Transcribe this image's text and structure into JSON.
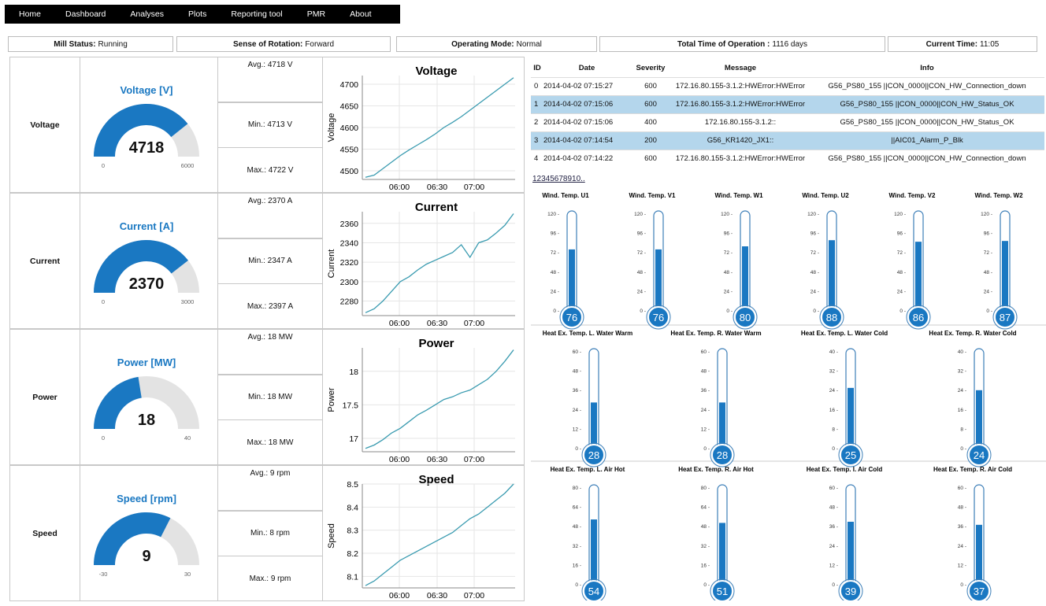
{
  "nav": [
    "Home",
    "Dashboard",
    "Analyses",
    "Plots",
    "Reporting tool",
    "PMR",
    "About"
  ],
  "status": [
    {
      "label": "Mill Status:",
      "value": "Running"
    },
    {
      "label": "Sense of Rotation:",
      "value": "Forward"
    },
    {
      "label": "Operating Mode:",
      "value": "Normal"
    },
    {
      "label": "Total Time of Operation :",
      "value": "1116 days"
    },
    {
      "label": "Current Time:",
      "value": "11:05"
    }
  ],
  "rows": [
    {
      "name": "Voltage",
      "gauge_title": "Voltage [V]",
      "value": "4718",
      "min": "0",
      "max": "6000",
      "fraction": 0.786,
      "avg": "Avg.: 4718 V",
      "minv": "Min.: 4713 V",
      "maxv": "Max.: 4722 V"
    },
    {
      "name": "Current",
      "gauge_title": "Current [A]",
      "value": "2370",
      "min": "0",
      "max": "3000",
      "fraction": 0.79,
      "avg": "Avg.: 2370 A",
      "minv": "Min.: 2347 A",
      "maxv": "Max.: 2397 A"
    },
    {
      "name": "Power",
      "gauge_title": "Power [MW]",
      "value": "18",
      "min": "0",
      "max": "40",
      "fraction": 0.45,
      "avg": "Avg.: 18 MW",
      "minv": "Min.: 18 MW",
      "maxv": "Max.: 18 MW"
    },
    {
      "name": "Speed",
      "gauge_title": "Speed [rpm]",
      "value": "9",
      "min": "-30",
      "max": "30",
      "fraction": 0.65,
      "avg": "Avg.: 9 rpm",
      "minv": "Min.: 8 rpm",
      "maxv": "Max.: 9 rpm"
    }
  ],
  "chart_data": [
    {
      "type": "line",
      "title": "Voltage",
      "ylabel": "Voltage",
      "xticks": [
        "06:00",
        "06:30",
        "07:00"
      ],
      "yticks": [
        "4500",
        "4550",
        "4600",
        "4650",
        "4700"
      ],
      "ylim": [
        4480,
        4720
      ],
      "values": [
        4485,
        4490,
        4505,
        4520,
        4535,
        4548,
        4560,
        4572,
        4585,
        4600,
        4612,
        4625,
        4640,
        4655,
        4670,
        4685,
        4700,
        4715
      ]
    },
    {
      "type": "line",
      "title": "Current",
      "ylabel": "Current",
      "xticks": [
        "06:00",
        "06:30",
        "07:00"
      ],
      "yticks": [
        "2280",
        "2300",
        "2320",
        "2340",
        "2360"
      ],
      "ylim": [
        2265,
        2372
      ],
      "values": [
        2268,
        2272,
        2280,
        2290,
        2300,
        2305,
        2312,
        2318,
        2322,
        2326,
        2330,
        2338,
        2325,
        2340,
        2343,
        2350,
        2358,
        2370
      ]
    },
    {
      "type": "line",
      "title": "Power",
      "ylabel": "Power",
      "xticks": [
        "06:00",
        "06:30",
        "07:00"
      ],
      "yticks": [
        "17",
        "17.5",
        "18"
      ],
      "ylim": [
        16.8,
        18.35
      ],
      "values": [
        16.85,
        16.9,
        16.98,
        17.08,
        17.15,
        17.25,
        17.35,
        17.42,
        17.5,
        17.58,
        17.62,
        17.68,
        17.72,
        17.8,
        17.88,
        18.0,
        18.15,
        18.32
      ]
    },
    {
      "type": "line",
      "title": "Speed",
      "ylabel": "Speed",
      "xticks": [
        "06:00",
        "06:30",
        "07:00"
      ],
      "yticks": [
        "8.1",
        "8.2",
        "8.3",
        "8.4",
        "8.5"
      ],
      "ylim": [
        8.05,
        8.5
      ],
      "values": [
        8.06,
        8.08,
        8.11,
        8.14,
        8.17,
        8.19,
        8.21,
        8.23,
        8.25,
        8.27,
        8.29,
        8.32,
        8.35,
        8.37,
        8.4,
        8.43,
        8.46,
        8.5
      ]
    }
  ],
  "events": {
    "headers": [
      "ID",
      "Date",
      "Severity",
      "Message",
      "Info"
    ],
    "rows": [
      [
        "0",
        "2014-04-02 07:15:27",
        "600",
        "172.16.80.155-3.1.2:HWError:HWError",
        "G56_PS80_155 ||CON_0000||CON_HW_Connection_down"
      ],
      [
        "1",
        "2014-04-02 07:15:06",
        "600",
        "172.16.80.155-3.1.2:HWError:HWError",
        "G56_PS80_155 ||CON_0000||CON_HW_Status_OK"
      ],
      [
        "2",
        "2014-04-02 07:15:06",
        "400",
        "172.16.80.155-3.1.2::",
        "G56_PS80_155 ||CON_0000||CON_HW_Status_OK"
      ],
      [
        "3",
        "2014-04-02 07:14:54",
        "200",
        "G56_KR1420_JX1::",
        "||AIC01_Alarm_P_Blk"
      ],
      [
        "4",
        "2014-04-02 07:14:22",
        "600",
        "172.16.80.155-3.1.2:HWError:HWError",
        "G56_PS80_155 ||CON_0000||CON_HW_Connection_down"
      ]
    ],
    "highlighted": [
      1,
      3
    ],
    "pager": "12345678910.."
  },
  "therm_groups": [
    {
      "max": 120,
      "ticks": [
        "120",
        "96",
        "72",
        "48",
        "24",
        "0"
      ],
      "items": [
        {
          "label": "Wind. Temp. U1",
          "value": "76"
        },
        {
          "label": "Wind. Temp. V1",
          "value": "76"
        },
        {
          "label": "Wind. Temp. W1",
          "value": "80"
        },
        {
          "label": "Wind. Temp. U2",
          "value": "88"
        },
        {
          "label": "Wind. Temp. V2",
          "value": "86"
        },
        {
          "label": "Wind. Temp. W2",
          "value": "87"
        }
      ]
    },
    {
      "items": [
        {
          "label": "Heat Ex. Temp. L. Water Warm",
          "value": "28",
          "max": 60,
          "ticks": [
            "60",
            "48",
            "36",
            "24",
            "12",
            "0"
          ]
        },
        {
          "label": "Heat Ex. Temp. R. Water Warm",
          "value": "28",
          "max": 60,
          "ticks": [
            "60",
            "48",
            "36",
            "24",
            "12",
            "0"
          ]
        },
        {
          "label": "Heat Ex. Temp. L. Water Cold",
          "value": "25",
          "max": 40,
          "ticks": [
            "40",
            "32",
            "24",
            "16",
            "8",
            "0"
          ]
        },
        {
          "label": "Heat Ex. Temp. R. Water Cold",
          "value": "24",
          "max": 40,
          "ticks": [
            "40",
            "32",
            "24",
            "16",
            "8",
            "0"
          ]
        }
      ]
    },
    {
      "items": [
        {
          "label": "Heat Ex. Temp. L. Air Hot",
          "value": "54",
          "max": 80,
          "ticks": [
            "80",
            "64",
            "48",
            "32",
            "16",
            "0"
          ]
        },
        {
          "label": "Heat Ex. Temp. R. Air Hot",
          "value": "51",
          "max": 80,
          "ticks": [
            "80",
            "64",
            "48",
            "32",
            "16",
            "0"
          ]
        },
        {
          "label": "Heat Ex. Temp. I. Air Cold",
          "value": "39",
          "max": 60,
          "ticks": [
            "60",
            "48",
            "36",
            "24",
            "12",
            "0"
          ]
        },
        {
          "label": "Heat Ex. Temp. R. Air Cold",
          "value": "37",
          "max": 60,
          "ticks": [
            "60",
            "48",
            "36",
            "24",
            "12",
            "0"
          ]
        }
      ]
    }
  ],
  "colors": {
    "accent": "#1a78c2",
    "gauge_bg": "#e3e3e3",
    "line": "#3a9bb0",
    "highlight": "#b4d6ec"
  }
}
